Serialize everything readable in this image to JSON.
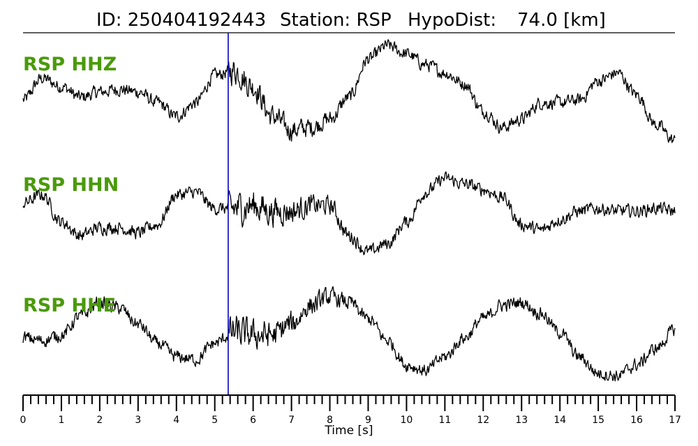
{
  "chart_data": {
    "type": "line",
    "title": {
      "id_label": "ID: 250404192443",
      "station_label": "Station: RSP",
      "hypodist_label": "HypoDist:",
      "hypodist_value": "74.0 [km]"
    },
    "xlabel": "Time [s]",
    "xlim": [
      0,
      17
    ],
    "major_ticks": [
      "0",
      "1",
      "2",
      "3",
      "4",
      "5",
      "6",
      "7",
      "8",
      "9",
      "10",
      "11",
      "12",
      "13",
      "14",
      "15",
      "16",
      "17"
    ],
    "minor_tick_step": 0.2,
    "pick_marker": {
      "time": 5.35,
      "color": "#0000cc"
    },
    "label_color": "#4a9a0a",
    "trace_color": "#000000",
    "series": [
      {
        "name": "RSP HHZ",
        "noise_amplitude": 0.1,
        "noise_increase_after_pick": 0.12,
        "envelope": [
          [
            0,
            -0.15
          ],
          [
            0.5,
            0.25
          ],
          [
            1.0,
            0.1
          ],
          [
            1.5,
            -0.1
          ],
          [
            2.0,
            0.0
          ],
          [
            2.5,
            0.05
          ],
          [
            3.0,
            0.0
          ],
          [
            3.5,
            -0.2
          ],
          [
            4.0,
            -0.45
          ],
          [
            4.5,
            -0.2
          ],
          [
            5.0,
            0.3
          ],
          [
            5.5,
            0.4
          ],
          [
            6.0,
            0.1
          ],
          [
            6.5,
            -0.45
          ],
          [
            7.0,
            -0.7
          ],
          [
            7.5,
            -0.65
          ],
          [
            8.0,
            -0.5
          ],
          [
            8.5,
            -0.1
          ],
          [
            9.0,
            0.6
          ],
          [
            9.5,
            0.85
          ],
          [
            10.0,
            0.7
          ],
          [
            10.5,
            0.5
          ],
          [
            11.0,
            0.35
          ],
          [
            11.5,
            0.15
          ],
          [
            12.0,
            -0.35
          ],
          [
            12.5,
            -0.65
          ],
          [
            13.0,
            -0.5
          ],
          [
            13.5,
            -0.2
          ],
          [
            14.0,
            -0.2
          ],
          [
            14.5,
            -0.15
          ],
          [
            15.0,
            0.2
          ],
          [
            15.5,
            0.35
          ],
          [
            16.0,
            -0.05
          ],
          [
            16.5,
            -0.6
          ],
          [
            17.0,
            -0.9
          ]
        ]
      },
      {
        "name": "RSP HHN",
        "noise_amplitude": 0.1,
        "noise_increase_after_pick": 0.18,
        "envelope": [
          [
            0,
            0.15
          ],
          [
            0.5,
            0.3
          ],
          [
            1.0,
            -0.2
          ],
          [
            1.5,
            -0.45
          ],
          [
            2.0,
            -0.3
          ],
          [
            2.5,
            -0.3
          ],
          [
            3.0,
            -0.4
          ],
          [
            3.5,
            -0.25
          ],
          [
            4.0,
            0.3
          ],
          [
            4.5,
            0.35
          ],
          [
            5.0,
            0.05
          ],
          [
            5.5,
            0.05
          ],
          [
            6.0,
            0.1
          ],
          [
            6.5,
            0.0
          ],
          [
            7.0,
            0.0
          ],
          [
            7.5,
            0.1
          ],
          [
            8.0,
            0.1
          ],
          [
            8.5,
            -0.45
          ],
          [
            9.0,
            -0.75
          ],
          [
            9.5,
            -0.6
          ],
          [
            10.0,
            -0.2
          ],
          [
            10.5,
            0.35
          ],
          [
            11.0,
            0.6
          ],
          [
            11.5,
            0.5
          ],
          [
            12.0,
            0.4
          ],
          [
            12.5,
            0.25
          ],
          [
            13.0,
            -0.25
          ],
          [
            13.5,
            -0.35
          ],
          [
            14.0,
            -0.15
          ],
          [
            14.5,
            0.0
          ],
          [
            15.0,
            0.05
          ],
          [
            15.5,
            0.0
          ],
          [
            16.0,
            0.0
          ],
          [
            16.5,
            0.05
          ],
          [
            17.0,
            0.0
          ]
        ]
      },
      {
        "name": "RSP HHE",
        "noise_amplitude": 0.1,
        "noise_increase_after_pick": 0.16,
        "envelope": [
          [
            0,
            -0.1
          ],
          [
            0.5,
            -0.15
          ],
          [
            1.0,
            -0.05
          ],
          [
            1.5,
            0.3
          ],
          [
            2.0,
            0.55
          ],
          [
            2.5,
            0.45
          ],
          [
            3.0,
            0.15
          ],
          [
            3.5,
            -0.2
          ],
          [
            4.0,
            -0.45
          ],
          [
            4.5,
            -0.5
          ],
          [
            5.0,
            -0.2
          ],
          [
            5.5,
            0.0
          ],
          [
            6.0,
            -0.05
          ],
          [
            6.5,
            -0.05
          ],
          [
            7.0,
            0.15
          ],
          [
            7.5,
            0.5
          ],
          [
            8.0,
            0.65
          ],
          [
            8.5,
            0.55
          ],
          [
            9.0,
            0.25
          ],
          [
            9.5,
            -0.15
          ],
          [
            10.0,
            -0.6
          ],
          [
            10.5,
            -0.7
          ],
          [
            11.0,
            -0.45
          ],
          [
            11.5,
            -0.1
          ],
          [
            12.0,
            0.25
          ],
          [
            12.5,
            0.5
          ],
          [
            13.0,
            0.55
          ],
          [
            13.5,
            0.35
          ],
          [
            14.0,
            0.0
          ],
          [
            14.5,
            -0.45
          ],
          [
            15.0,
            -0.75
          ],
          [
            15.5,
            -0.8
          ],
          [
            16.0,
            -0.6
          ],
          [
            16.5,
            -0.3
          ],
          [
            17.0,
            0.05
          ]
        ]
      }
    ]
  }
}
